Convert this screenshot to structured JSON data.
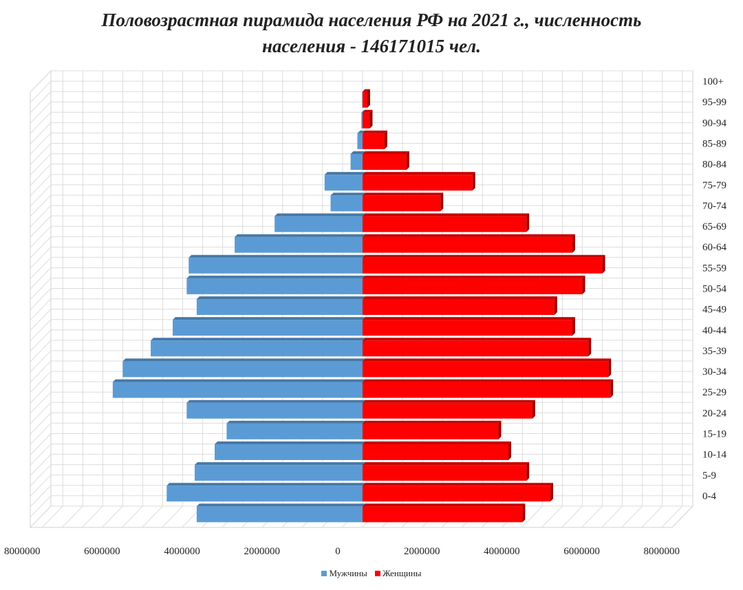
{
  "chart_data": {
    "type": "bar",
    "orientation": "horizontal-pyramid",
    "title_line1": "Половозрастная пирамида населения РФ на 2021 г., численность",
    "title_line2": "населения - 146171015 чел.",
    "categories": [
      "0-4",
      "5-9",
      "10-14",
      "15-19",
      "20-24",
      "25-29",
      "30-34",
      "35-39",
      "40-44",
      "45-49",
      "50-54",
      "55-59",
      "60-64",
      "65-69",
      "70-74",
      "75-79",
      "80-84",
      "85-89",
      "90-94",
      "95-99",
      "100+"
    ],
    "series": [
      {
        "name": "Мужчины",
        "color": "#5b9bd5",
        "values": [
          4150000,
          4900000,
          4200000,
          3700000,
          3400000,
          4400000,
          6250000,
          6000000,
          5300000,
          4750000,
          4150000,
          4400000,
          4350000,
          3200000,
          2200000,
          800000,
          950000,
          300000,
          130000,
          30000,
          10000
        ]
      },
      {
        "name": "Женщины",
        "color": "#ff0000",
        "values": [
          4000000,
          4700000,
          4100000,
          3650000,
          3400000,
          4250000,
          6200000,
          6150000,
          5650000,
          5250000,
          4800000,
          5500000,
          6000000,
          5250000,
          4100000,
          1950000,
          2750000,
          1100000,
          550000,
          180000,
          120000
        ]
      }
    ],
    "x_ticks": [
      "8000000",
      "6000000",
      "4000000",
      "2000000",
      "0",
      "2000000",
      "4000000",
      "6000000",
      "8000000"
    ],
    "xlim": [
      -8000000,
      8000000
    ],
    "grid": true,
    "legend_position": "bottom"
  }
}
